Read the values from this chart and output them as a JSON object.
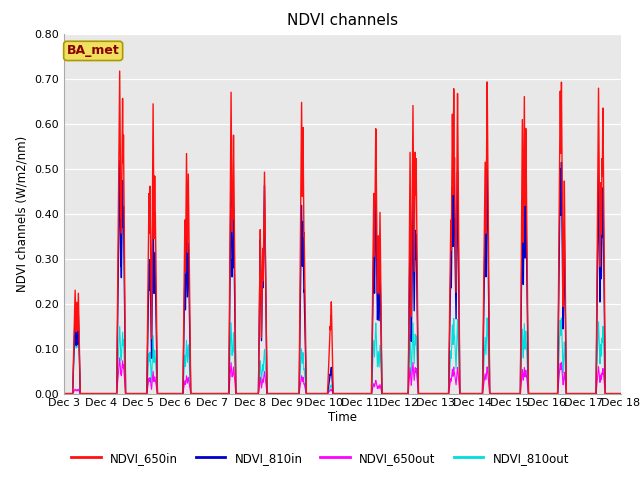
{
  "title": "NDVI channels",
  "ylabel": "NDVI channels (W/m2/nm)",
  "xlabel": "Time",
  "ylim": [
    0.0,
    0.8
  ],
  "xlim": [
    3,
    18
  ],
  "background_color": "#e8e8e8",
  "annotation_text": "BA_met",
  "annotation_color": "#8B0000",
  "annotation_bg": "#f0e060",
  "colors": {
    "NDVI_650in": "#FF1010",
    "NDVI_810in": "#0000CC",
    "NDVI_650out": "#FF00FF",
    "NDVI_810out": "#00DDDD"
  },
  "peaks": {
    "days": [
      3.3,
      4.5,
      5.4,
      6.3,
      7.5,
      8.4,
      9.4,
      10.2,
      11.4,
      12.4,
      13.5,
      14.4,
      15.4,
      16.4,
      17.4
    ],
    "NDVI_650in": [
      0.23,
      0.72,
      0.65,
      0.54,
      0.68,
      0.5,
      0.65,
      0.21,
      0.6,
      0.65,
      0.69,
      0.7,
      0.68,
      0.7,
      0.68
    ],
    "NDVI_810in": [
      0.18,
      0.52,
      0.42,
      0.37,
      0.49,
      0.47,
      0.42,
      0.06,
      0.44,
      0.44,
      0.51,
      0.51,
      0.49,
      0.52,
      0.49
    ],
    "NDVI_650out": [
      0.01,
      0.08,
      0.05,
      0.04,
      0.07,
      0.05,
      0.04,
      0.01,
      0.03,
      0.07,
      0.06,
      0.06,
      0.06,
      0.07,
      0.06
    ],
    "NDVI_810out": [
      0.17,
      0.15,
      0.13,
      0.12,
      0.16,
      0.1,
      0.1,
      0.02,
      0.16,
      0.16,
      0.17,
      0.17,
      0.16,
      0.17,
      0.16
    ]
  },
  "xtick_positions": [
    3,
    4,
    5,
    6,
    7,
    8,
    9,
    10,
    11,
    12,
    13,
    14,
    15,
    16,
    17,
    18
  ],
  "xtick_labels": [
    "Dec 3",
    "Dec 4",
    "Dec 5",
    "Dec 6",
    "Dec 7",
    "Dec 8",
    "Dec 9",
    "Dec 10",
    "Dec 11",
    "Dec 12",
    "Dec 13",
    "Dec 14",
    "Dec 15",
    "Dec 16",
    "Dec 17",
    "Dec 18"
  ],
  "figsize": [
    6.4,
    4.8
  ],
  "dpi": 100
}
